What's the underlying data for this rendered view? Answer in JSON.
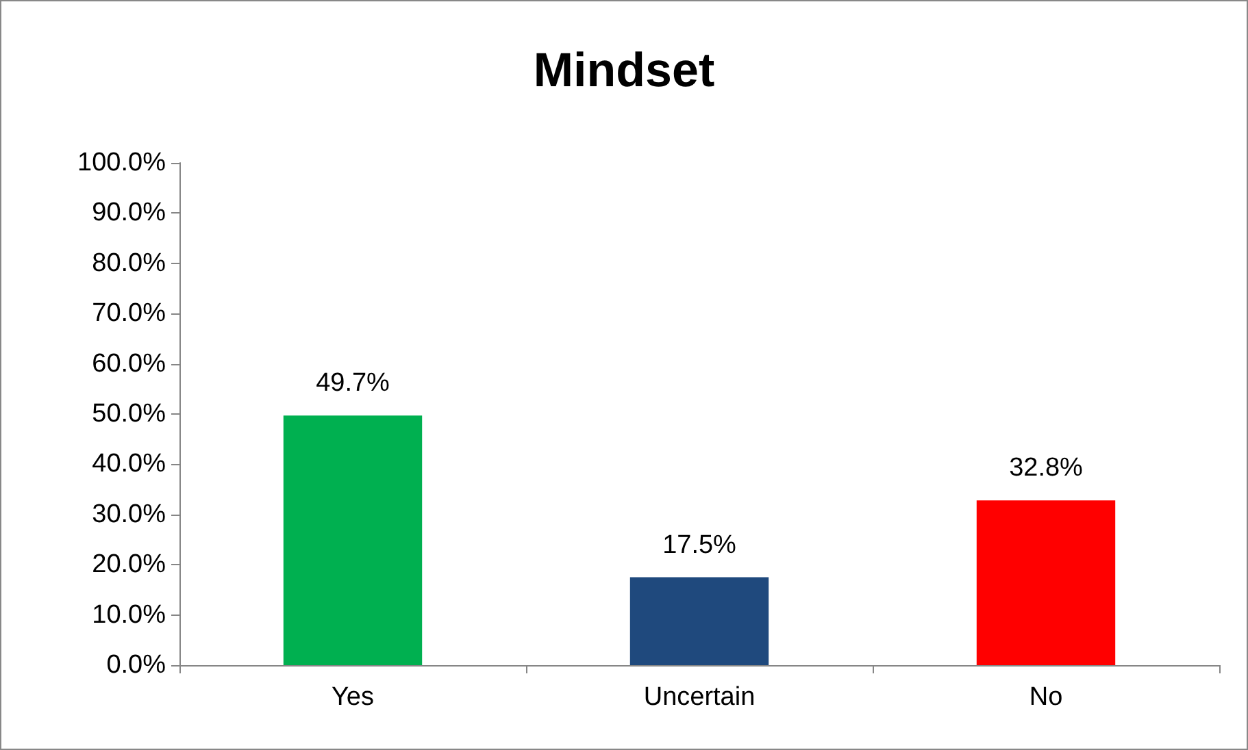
{
  "chart_data": {
    "type": "bar",
    "title": "Mindset",
    "categories": [
      "Yes",
      "Uncertain",
      "No"
    ],
    "values": [
      49.7,
      17.5,
      32.8
    ],
    "colors": [
      "#00b050",
      "#1f497d",
      "#ff0000"
    ],
    "value_labels": [
      "49.7%",
      "17.5%",
      "32.8%"
    ],
    "ylim": [
      0,
      100
    ],
    "yticks": [
      {
        "value": 0,
        "label": "0.0%"
      },
      {
        "value": 10,
        "label": "10.0%"
      },
      {
        "value": 20,
        "label": "20.0%"
      },
      {
        "value": 30,
        "label": "30.0%"
      },
      {
        "value": 40,
        "label": "40.0%"
      },
      {
        "value": 50,
        "label": "50.0%"
      },
      {
        "value": 60,
        "label": "60.0%"
      },
      {
        "value": 70,
        "label": "70.0%"
      },
      {
        "value": 80,
        "label": "80.0%"
      },
      {
        "value": 90,
        "label": "90.0%"
      },
      {
        "value": 100,
        "label": "100.0%"
      }
    ],
    "grid": false
  }
}
